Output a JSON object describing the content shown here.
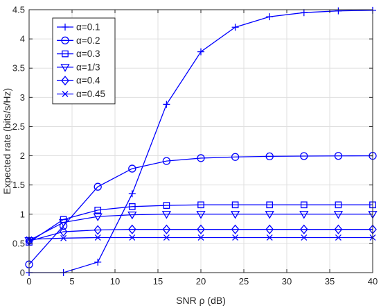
{
  "chart_data": {
    "type": "line",
    "xlabel": "SNR ρ (dB)",
    "ylabel": "Expected rate (bits/s/Hz)",
    "xlim": [
      0,
      40
    ],
    "ylim": [
      0,
      4.5
    ],
    "xticks": [
      0,
      5,
      10,
      15,
      20,
      25,
      30,
      35,
      40
    ],
    "yticks": [
      0,
      0.5,
      1,
      1.5,
      2,
      2.5,
      3,
      3.5,
      4,
      4.5
    ],
    "xtick_labels": [
      "0",
      "5",
      "10",
      "15",
      "20",
      "25",
      "30",
      "35",
      "40"
    ],
    "ytick_labels": [
      "0",
      "0.5",
      "1",
      "1.5",
      "2",
      "2.5",
      "3",
      "3.5",
      "4",
      "4.5"
    ],
    "grid": true,
    "legend_position": "top-left",
    "x": [
      0,
      4,
      8,
      12,
      16,
      20,
      24,
      28,
      32,
      36,
      40
    ],
    "series": [
      {
        "name": "α=0.1",
        "marker": "plus",
        "color": "#0000ff",
        "values": [
          0.0,
          0.0,
          0.18,
          1.35,
          2.88,
          3.78,
          4.2,
          4.38,
          4.45,
          4.48,
          4.49
        ]
      },
      {
        "name": "α=0.2",
        "marker": "circle",
        "color": "#0000ff",
        "values": [
          0.14,
          0.8,
          1.47,
          1.78,
          1.91,
          1.96,
          1.98,
          1.99,
          1.995,
          1.998,
          1.999
        ]
      },
      {
        "name": "α=0.3",
        "marker": "square",
        "color": "#0000ff",
        "values": [
          0.52,
          0.91,
          1.07,
          1.13,
          1.15,
          1.16,
          1.16,
          1.16,
          1.16,
          1.16,
          1.16
        ]
      },
      {
        "name": "α=1/3",
        "marker": "triangle-down",
        "color": "#0000ff",
        "values": [
          0.55,
          0.86,
          0.96,
          0.99,
          1.0,
          1.0,
          1.0,
          1.0,
          1.0,
          1.0,
          1.0
        ]
      },
      {
        "name": "α=0.4",
        "marker": "diamond",
        "color": "#0000ff",
        "values": [
          0.54,
          0.7,
          0.73,
          0.74,
          0.74,
          0.74,
          0.74,
          0.74,
          0.74,
          0.74,
          0.74
        ]
      },
      {
        "name": "α=0.45",
        "marker": "x",
        "color": "#0000ff",
        "values": [
          0.57,
          0.59,
          0.6,
          0.6,
          0.6,
          0.6,
          0.6,
          0.6,
          0.6,
          0.6,
          0.6
        ]
      }
    ]
  }
}
